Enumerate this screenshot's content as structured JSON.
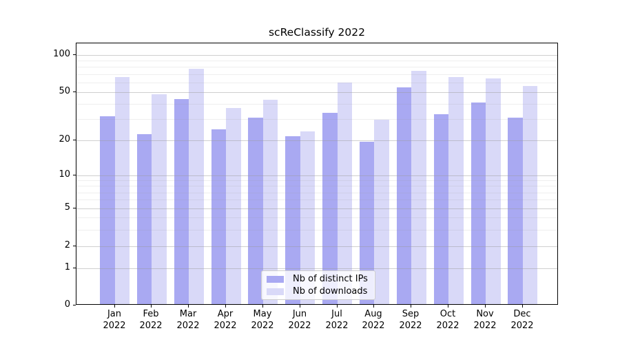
{
  "chart_data": {
    "type": "bar",
    "title": "scReClassify 2022",
    "categories": [
      "Jan 2022",
      "Feb 2022",
      "Mar 2022",
      "Apr 2022",
      "May 2022",
      "Jun 2022",
      "Jul 2022",
      "Aug 2022",
      "Sep 2022",
      "Oct 2022",
      "Nov 2022",
      "Dec 2022"
    ],
    "series": [
      {
        "name": "Nb of distinct IPs",
        "color": "#a9a9f2",
        "values": [
          31,
          22,
          43,
          24,
          30,
          21,
          33,
          19,
          53,
          32,
          40,
          30
        ]
      },
      {
        "name": "Nb of downloads",
        "color": "#d9d9f8",
        "values": [
          65,
          47,
          75,
          36,
          42,
          23,
          58,
          29,
          73,
          65,
          63,
          55
        ]
      }
    ],
    "y_axis": {
      "scale": "log-with-zero",
      "ticks": [
        0,
        1,
        2,
        5,
        10,
        20,
        50,
        100
      ],
      "minor_ticks": [
        3,
        4,
        6,
        7,
        8,
        9,
        30,
        40,
        60,
        70,
        80,
        90
      ],
      "range_top": 125
    },
    "x_axis": {
      "label_lines": 2
    },
    "legend": {
      "position": "lower-center-inside",
      "frame": true
    },
    "grid": "major-and-minor-horizontal"
  }
}
